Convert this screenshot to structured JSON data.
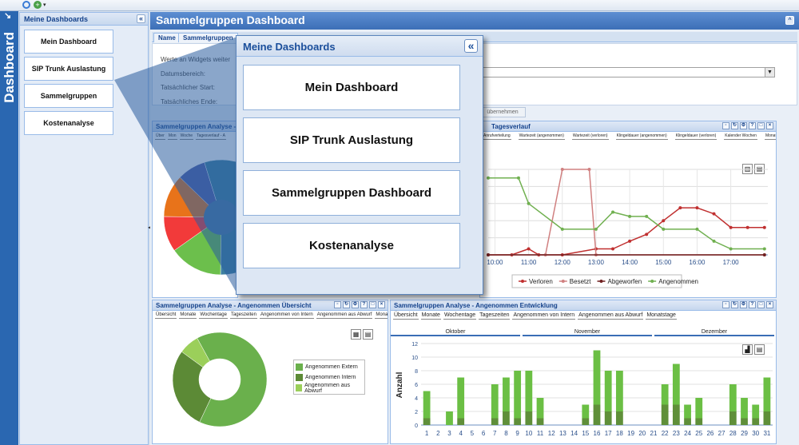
{
  "app": {
    "vertical_tab": "Dashboard"
  },
  "sidebar": {
    "title": "Meine Dashboards",
    "collapse_icon": "«",
    "items": [
      {
        "label": "Mein Dashboard"
      },
      {
        "label": "SIP Trunk Auslastung"
      },
      {
        "label": "Sammelgruppen Dashboard"
      },
      {
        "label": "Kostenanalyse"
      }
    ]
  },
  "main": {
    "title": "Sammelgruppen Dashboard",
    "tabs": [
      "Name",
      "Sammelgruppen"
    ],
    "form": {
      "checkbox_label": "Werte an Widgets weiter",
      "date_range_label": "Datumsbereich:",
      "start_label": "Tatsächlicher Start:",
      "end_label": "Tatsächliches Ende:",
      "apply_label": "übernehmen"
    }
  },
  "popup": {
    "title": "Meine Dashboards",
    "collapse_icon": "«",
    "items": [
      {
        "label": "Mein Dashboard"
      },
      {
        "label": "SIP Trunk Auslastung"
      },
      {
        "label": "Sammelgruppen Dashboard"
      },
      {
        "label": "Kostenanalyse"
      }
    ]
  },
  "panels": {
    "quota": {
      "title": "Sammelgruppen Analyse - Qu",
      "tabs": [
        "Über",
        "Mon",
        "Woche",
        "Tagesverlauf - A"
      ]
    },
    "tagesverlauf": {
      "title": "Tagesverlauf",
      "tabs": [
        "Anrufverteilung",
        "Wartezeit (angenommen)",
        "Wartezeit (verloren)",
        "Klingeldauer (angenommen)",
        "Klingeldauer (verloren)",
        "Kalender Wochen",
        "Monatstage"
      ]
    },
    "uebersicht": {
      "title": "Sammelgruppen Analyse - Angenommen Übersicht",
      "tabs": [
        "Übersicht",
        "Monate",
        "Wochentage",
        "Tageszeiten",
        "Angenommen von Intern",
        "Angenommen aus Abwurf",
        "Monatstage"
      ]
    },
    "entwicklung": {
      "title": "Sammelgruppen Analyse - Angenommen Entwicklung",
      "tabs": [
        "Übersicht",
        "Monate",
        "Wochentage",
        "Tageszeiten",
        "Angenommen von Intern",
        "Angenommen aus Abwurf",
        "Monatstage"
      ],
      "months": [
        "Oktober",
        "November",
        "Dezember"
      ]
    }
  },
  "chart_data": [
    {
      "type": "pie",
      "title": "Sammelgruppen Analyse - Qu",
      "slices": [
        {
          "label": "",
          "value": 55,
          "color": "#3d7fa0"
        },
        {
          "label": "",
          "value": 15,
          "color": "#6cbf4c"
        },
        {
          "label": "",
          "value": 10,
          "color": "#f23a3a"
        },
        {
          "label": "",
          "value": 12,
          "color": "#e8731a"
        },
        {
          "label": "",
          "value": 8,
          "color": "#5060a8"
        }
      ]
    },
    {
      "type": "line",
      "title": "Tagesverlauf",
      "categories": [
        "10:00",
        "11:00",
        "12:00",
        "13:00",
        "14:00",
        "15:00",
        "16:00",
        "17:00"
      ],
      "ylim": [
        0,
        10
      ],
      "series": [
        {
          "name": "Verloren",
          "color": "#c03030",
          "points": [
            [
              9.8,
              0
            ],
            [
              10.5,
              0
            ],
            [
              11,
              0.7
            ],
            [
              11.3,
              0
            ],
            [
              12,
              0
            ],
            [
              13,
              0.7
            ],
            [
              13.5,
              0.7
            ],
            [
              14,
              1.6
            ],
            [
              14.5,
              2.4
            ],
            [
              15,
              4
            ],
            [
              15.5,
              5.5
            ],
            [
              16,
              5.5
            ],
            [
              16.5,
              4.8
            ],
            [
              17,
              3.2
            ],
            [
              17.5,
              3.2
            ],
            [
              18,
              3.2
            ]
          ]
        },
        {
          "name": "Besetzt",
          "color": "#d08080",
          "points": [
            [
              9.8,
              0
            ],
            [
              11.5,
              0
            ],
            [
              12,
              10
            ],
            [
              12.8,
              10
            ],
            [
              13,
              0
            ],
            [
              18,
              0
            ]
          ]
        },
        {
          "name": "Abgeworfen",
          "color": "#702020",
          "points": [
            [
              9.8,
              0
            ],
            [
              18,
              0
            ]
          ]
        },
        {
          "name": "Angenommen",
          "color": "#70b050",
          "points": [
            [
              9.8,
              9
            ],
            [
              10.7,
              9
            ],
            [
              11,
              6
            ],
            [
              12,
              3
            ],
            [
              13,
              3
            ],
            [
              13.5,
              5
            ],
            [
              14,
              4.5
            ],
            [
              14.5,
              4.5
            ],
            [
              15,
              3
            ],
            [
              16,
              3
            ],
            [
              16.5,
              1.6
            ],
            [
              17,
              0.7
            ],
            [
              18,
              0.7
            ]
          ]
        }
      ]
    },
    {
      "type": "pie",
      "title": "Sammelgruppen Analyse - Angenommen Übersicht",
      "series_names": [
        "Angenommen Extern",
        "Angenommen Intern",
        "Angenommen aus Abwurf"
      ],
      "values": [
        65,
        28,
        7
      ],
      "colors": [
        "#6ab04c",
        "#5c8a36",
        "#9bcf5a"
      ]
    },
    {
      "type": "bar",
      "title": "Sammelgruppen Analyse - Angenommen Entwicklung",
      "ylabel": "Anzahl",
      "ylim": [
        0,
        12
      ],
      "categories": [
        "1",
        "2",
        "3",
        "4",
        "5",
        "6",
        "7",
        "8",
        "9",
        "10",
        "11",
        "12",
        "13",
        "14",
        "15",
        "16",
        "17",
        "18",
        "19",
        "20",
        "21",
        "22",
        "23",
        "24",
        "25",
        "26",
        "27",
        "28",
        "29",
        "30",
        "31"
      ],
      "series": [
        {
          "name": "Angenommen Intern",
          "color": "#5f8f39",
          "values": [
            1,
            0,
            0,
            1,
            0,
            0,
            1,
            2,
            1,
            2,
            1,
            0,
            0,
            0,
            1,
            3,
            2,
            2,
            0,
            0,
            0,
            3,
            3,
            1,
            1,
            0,
            0,
            2,
            1,
            1,
            2
          ]
        },
        {
          "name": "Angenommen Extern",
          "color": "#6bbf44",
          "values": [
            4,
            0,
            2,
            6,
            0,
            0,
            5,
            5,
            7,
            6,
            3,
            0,
            0,
            0,
            2,
            8,
            6,
            6,
            0,
            0,
            0,
            3,
            6,
            2,
            3,
            0,
            0,
            4,
            3,
            2,
            5
          ]
        }
      ]
    }
  ]
}
